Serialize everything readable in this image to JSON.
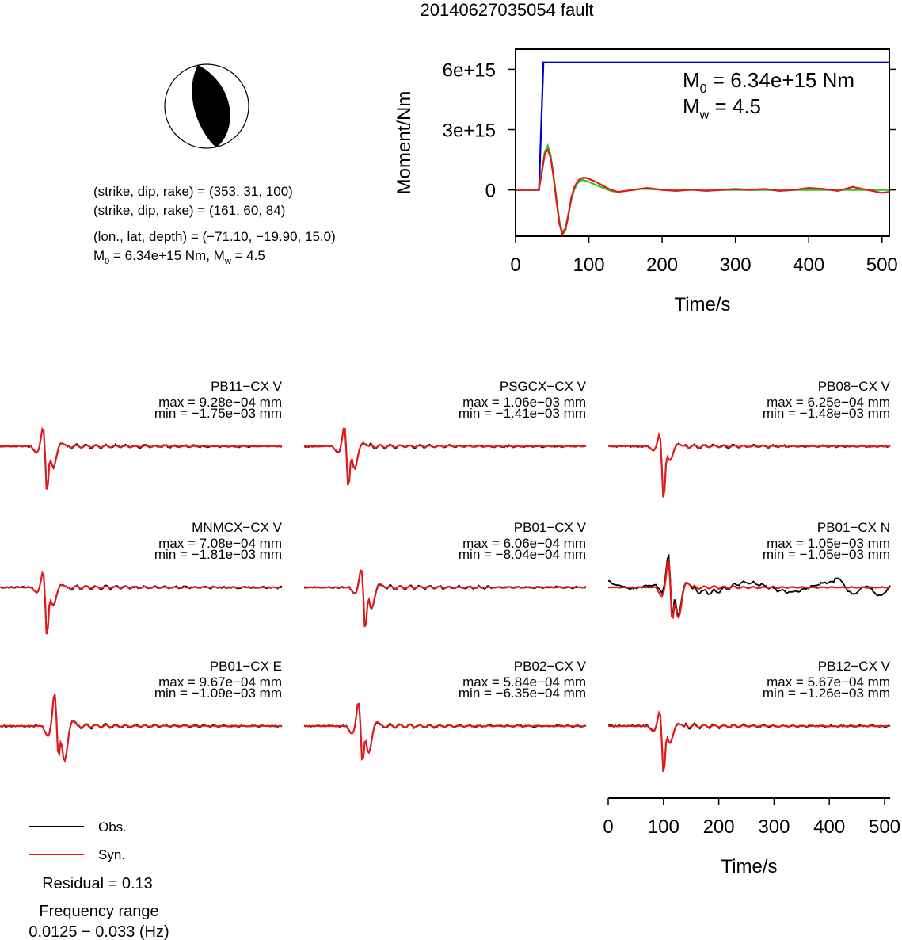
{
  "title": "20140627035054 fault",
  "focal_info": {
    "line1": "(strike, dip, rake) = (353, 31, 100)",
    "line2": "(strike, dip, rake) = (161, 60, 84)",
    "line3": "(lon., lat, depth) = (−71.10, −19.90, 15.0)",
    "line4_m": "M",
    "line4_sub": "0",
    "line4_rest": " = 6.34e+15 Nm, M",
    "line4_sub2": "w",
    "line4_end": " = 4.5"
  },
  "moment_panel": {
    "ylabel": "Moment/Nm",
    "xlabel": "Time/s",
    "m0_main": "M",
    "m0_sub": "0",
    "m0_rest": " = 6.34e+15 Nm",
    "mw_main": "M",
    "mw_sub": "w",
    "mw_rest": " = 4.5"
  },
  "legend": {
    "obs": "Obs.",
    "syn": "Syn.",
    "residual": "Residual = 0.13",
    "freq_label": "Frequency range",
    "freq_value": "0.0125 − 0.033 (Hz)"
  },
  "colors": {
    "observed": "#000000",
    "synthetic": "#e31a1c",
    "moment_cumulative": "#0000cc",
    "moment_rate_a": "#22cc22",
    "moment_rate_b": "#e31a1c",
    "beachball_fill": "#000000"
  },
  "chart_data": [
    {
      "type": "line",
      "title": "",
      "xlabel": "Time/s",
      "ylabel": "Moment/Nm",
      "xlim": [
        0,
        510
      ],
      "ylim": [
        -2300000000000000.0,
        7000000000000000.0
      ],
      "x_ticks": [
        0,
        100,
        200,
        300,
        400,
        500
      ],
      "x_tick_labels": [
        "0",
        "100",
        "200",
        "300",
        "400",
        "500"
      ],
      "y_ticks": [
        0,
        3000000000000000.0,
        6000000000000000.0
      ],
      "y_tick_labels": [
        "0",
        "3e+15",
        "6e+15"
      ],
      "series": [
        {
          "color": "blue",
          "x": [
            0,
            32,
            38,
            510
          ],
          "values": [
            0,
            0,
            6340000000000000.0,
            6340000000000000.0
          ]
        },
        {
          "color": "green",
          "x": [
            0,
            28,
            32,
            36,
            40,
            44,
            48,
            52,
            56,
            60,
            64,
            68,
            72,
            76,
            80,
            84,
            88,
            92,
            96,
            100,
            110,
            120,
            130,
            140,
            150,
            160,
            170,
            180,
            190,
            200,
            220,
            240,
            260,
            280,
            300,
            340,
            380,
            420,
            460,
            510
          ],
          "values": [
            0,
            0,
            50000000000000.0,
            1000000000000000.0,
            1900000000000000.0,
            2200000000000000.0,
            1700000000000000.0,
            700000000000000.0,
            -500000000000000.0,
            -1600000000000000.0,
            -2100000000000000.0,
            -1900000000000000.0,
            -1200000000000000.0,
            -500000000000000.0,
            0.0,
            300000000000000.0,
            450000000000000.0,
            500000000000000.0,
            450000000000000.0,
            400000000000000.0,
            250000000000000.0,
            100000000000000.0,
            -50000000000000.0,
            -100000000000000.0,
            -50000000000000.0,
            0.0,
            50000000000000.0,
            50000000000000.0,
            30000000000000.0,
            20000000000000.0,
            0.0,
            0.0,
            0.0,
            0.0,
            0.0,
            0.0,
            0.0,
            0.0,
            0.0,
            0.0
          ]
        },
        {
          "color": "red",
          "x": [
            0,
            28,
            32,
            36,
            40,
            44,
            48,
            52,
            56,
            60,
            64,
            68,
            72,
            76,
            80,
            84,
            88,
            92,
            96,
            100,
            110,
            120,
            130,
            140,
            150,
            160,
            170,
            180,
            190,
            200,
            220,
            240,
            260,
            280,
            300,
            320,
            340,
            360,
            380,
            400,
            420,
            440,
            460,
            480,
            500,
            510
          ],
          "values": [
            0,
            0,
            50000000000000.0,
            900000000000000.0,
            1800000000000000.0,
            2000000000000000.0,
            1600000000000000.0,
            600000000000000.0,
            -600000000000000.0,
            -1700000000000000.0,
            -2200000000000000.0,
            -2000000000000000.0,
            -1300000000000000.0,
            -400000000000000.0,
            100000000000000.0,
            400000000000000.0,
            550000000000000.0,
            600000000000000.0,
            600000000000000.0,
            550000000000000.0,
            400000000000000.0,
            200000000000000.0,
            0.0,
            -100000000000000.0,
            -50000000000000.0,
            0.0,
            50000000000000.0,
            100000000000000.0,
            50000000000000.0,
            0.0,
            -50000000000000.0,
            20000000000000.0,
            -50000000000000.0,
            0.0,
            50000000000000.0,
            0.0,
            50000000000000.0,
            -50000000000000.0,
            0.0,
            100000000000000.0,
            50000000000000.0,
            -50000000000000.0,
            150000000000000.0,
            0.0,
            -150000000000000.0,
            -100000000000000.0
          ]
        }
      ]
    },
    {
      "type": "line",
      "title": "",
      "xlabel": "Time/s",
      "xlim": [
        0,
        510
      ],
      "x_ticks": [
        0,
        100,
        200,
        300,
        400,
        500
      ],
      "x_tick_labels": [
        "0",
        "100",
        "200",
        "300",
        "400",
        "500"
      ],
      "stations": [
        {
          "name": "PB11−CX V",
          "max": "max = 9.28e−04 mm",
          "min": "min = −1.75e−03 mm",
          "max_val": 0.000928,
          "min_val": -0.00175
        },
        {
          "name": "PSGCX−CX V",
          "max": "max = 1.06e−03 mm",
          "min": "min = −1.41e−03 mm",
          "max_val": 0.00106,
          "min_val": -0.00141
        },
        {
          "name": "PB08−CX V",
          "max": "max = 6.25e−04 mm",
          "min": "min = −1.48e−03 mm",
          "max_val": 0.000625,
          "min_val": -0.00148
        },
        {
          "name": "MNMCX−CX V",
          "max": "max = 7.08e−04 mm",
          "min": "min = −1.81e−03 mm",
          "max_val": 0.000708,
          "min_val": -0.00181
        },
        {
          "name": "PB01−CX V",
          "max": "max = 6.06e−04 mm",
          "min": "min = −8.04e−04 mm",
          "max_val": 0.000606,
          "min_val": -0.000804
        },
        {
          "name": "PB01−CX N",
          "max": "max = 1.05e−03 mm",
          "min": "min = −1.05e−03 mm",
          "max_val": 0.00105,
          "min_val": -0.00105
        },
        {
          "name": "PB01−CX E",
          "max": "max = 9.67e−04 mm",
          "min": "min = −1.09e−03 mm",
          "max_val": 0.000967,
          "min_val": -0.00109
        },
        {
          "name": "PB02−CX V",
          "max": "max = 5.84e−04 mm",
          "min": "min = −6.35e−04 mm",
          "max_val": 0.000584,
          "min_val": -0.000635
        },
        {
          "name": "PB12−CX V",
          "max": "max = 5.67e−04 mm",
          "min": "min = −1.26e−03 mm",
          "max_val": 0.000567,
          "min_val": -0.00126
        }
      ]
    }
  ]
}
